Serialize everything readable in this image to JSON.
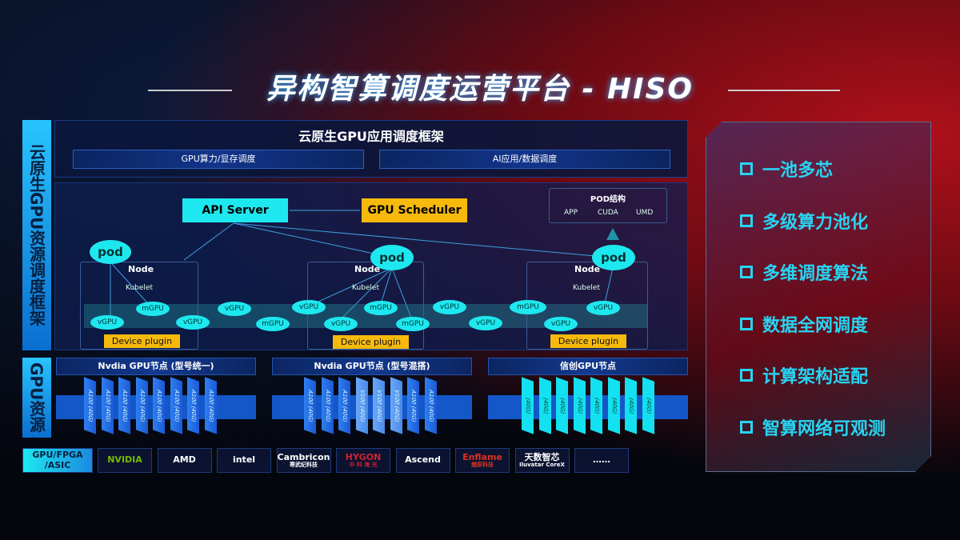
{
  "title": "异构智算调度运营平台 - HISO",
  "side_labels": {
    "top": "云原生GPU资源调度框架",
    "bottom": "GPU资源",
    "vendors": "GPU/FPGA /ASIC"
  },
  "framework": {
    "title": "云原生GPU应用调度框架",
    "sub": [
      "GPU算力/显存调度",
      "AI应用/数据调度"
    ]
  },
  "api_server": "API Server",
  "gpu_scheduler": "GPU Scheduler",
  "pod_struct": {
    "title": "POD结构",
    "items": [
      "APP",
      "CUDA",
      "UMD"
    ]
  },
  "node_label": "Node",
  "kubelet": "Kubelet",
  "pod": "pod",
  "device_plugin": "Device plugin",
  "vgpu": "vGPU",
  "mgpu": "mGPU",
  "gpu_nodes": [
    {
      "title": "Nvdia GPU节点 (型号统一)",
      "cards": [
        "A100 (40G)",
        "A100 (40G)",
        "A100 (40G)",
        "A100 (40G)",
        "A100 (40G)",
        "A100 (40G)",
        "A100 (40G)",
        "A100 (40G)"
      ]
    },
    {
      "title": "Nvdia GPU节点 (型号混搭)",
      "cards": [
        "A100 (40G)",
        "A100 (40G)",
        "A100 (40G)",
        "V100 (40G)",
        "V100 (40G)",
        "V100 (40G)",
        "A100 (40G)",
        "A100 (40G)"
      ]
    },
    {
      "title": "信创GPU节点",
      "cards": [
        "(40G)",
        "(40G)",
        "(40G)",
        "(40G)",
        "(40G)",
        "(40G)",
        "(40G)",
        "(40G)"
      ]
    }
  ],
  "vendors": [
    {
      "name": "NVIDIA",
      "color": "#76b900"
    },
    {
      "name": "AMD",
      "color": "#ffffff"
    },
    {
      "name": "intel",
      "color": "#ffffff"
    },
    {
      "name": "Cambricon",
      "sub": "寒武纪科技",
      "color": "#ffffff"
    },
    {
      "name": "HYGON",
      "sub": "中 科 海 光",
      "color": "#d22030"
    },
    {
      "name": "Ascend",
      "color": "#ffffff"
    },
    {
      "name": "Enflame",
      "sub": "燧原科技",
      "color": "#e03020"
    },
    {
      "name": "天数智芯",
      "sub": "Iluvatar CoreX",
      "color": "#ffffff"
    },
    {
      "name": "……",
      "color": "#ffffff"
    }
  ],
  "features": [
    "一池多芯",
    "多级算力池化",
    "多维调度算法",
    "数据全网调度",
    "计算架构适配",
    "智算网络可观测"
  ],
  "colors": {
    "cyan": "#1ee8ef",
    "orange": "#f6b90c",
    "blue": "#1457c8",
    "feature": "#27d4f2"
  }
}
